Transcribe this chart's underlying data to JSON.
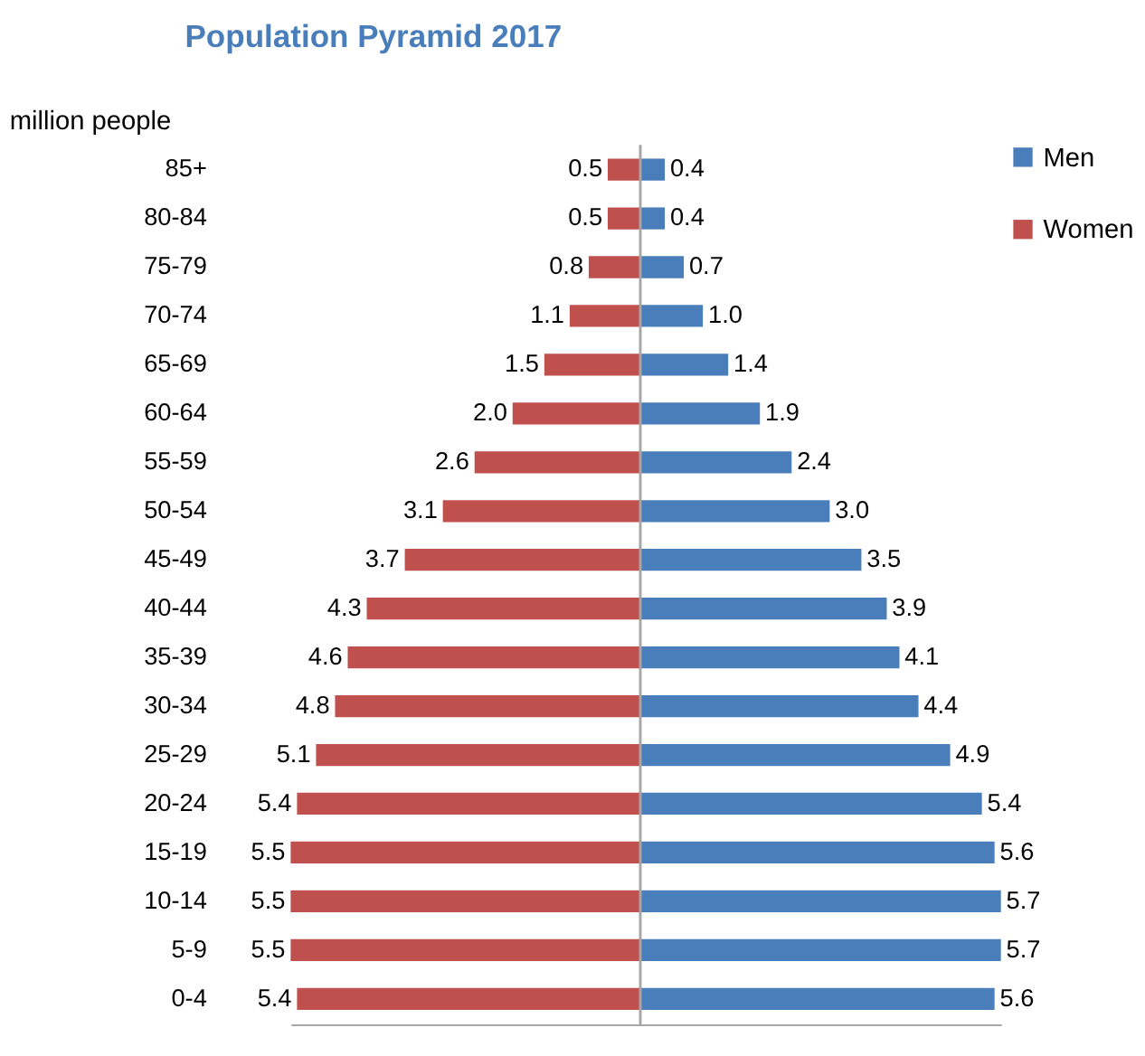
{
  "chart_data": [
    {
      "type": "bar",
      "orientation": "horizontal",
      "title": "Population Pyramid 2017",
      "ylabel": "million people",
      "categories": [
        "85+",
        "80-84",
        "75-79",
        "70-74",
        "65-69",
        "60-64",
        "55-59",
        "50-54",
        "45-49",
        "40-44",
        "35-39",
        "30-34",
        "25-29",
        "20-24",
        "15-19",
        "10-14",
        "5-9",
        "0-4"
      ],
      "series": [
        {
          "name": "Women",
          "color": "#c0504d",
          "values": [
            0.5,
            0.5,
            0.8,
            1.1,
            1.5,
            2.0,
            2.6,
            3.1,
            3.7,
            4.3,
            4.6,
            4.8,
            5.1,
            5.4,
            5.5,
            5.5,
            5.5,
            5.4
          ],
          "value_labels": [
            "0.5",
            "0.5",
            "0.8",
            "1.1",
            "1.5",
            "2.0",
            "2.6",
            "3.1",
            "3.7",
            "4.3",
            "4.6",
            "4.8",
            "5.1",
            "5.4",
            "5.5",
            "5.5",
            "5.5",
            "5.4"
          ]
        }
      ],
      "xlim": [
        5.5,
        0
      ],
      "tick_labels": "y",
      "grid": false,
      "legend": "top right"
    },
    {
      "type": "bar",
      "orientation": "horizontal",
      "categories": [
        "85+",
        "80-84",
        "75-79",
        "70-74",
        "65-69",
        "60-64",
        "55-59",
        "50-54",
        "45-49",
        "40-44",
        "35-39",
        "30-34",
        "25-29",
        "20-24",
        "15-19",
        "10-14",
        "5-9",
        "0-4"
      ],
      "series": [
        {
          "name": "Men",
          "color": "#4a7ebb",
          "values": [
            0.4,
            0.4,
            0.7,
            1.0,
            1.4,
            1.9,
            2.4,
            3.0,
            3.5,
            3.9,
            4.1,
            4.4,
            4.9,
            5.4,
            5.6,
            5.7,
            5.7,
            5.6
          ],
          "value_labels": [
            "0.4",
            "0.4",
            "0.7",
            "1.0",
            "1.4",
            "1.9",
            "2.4",
            "3.0",
            "3.5",
            "3.9",
            "4.1",
            "4.4",
            "4.9",
            "5.4",
            "5.6",
            "5.7",
            "5.7",
            "5.6"
          ]
        }
      ],
      "xlim": [
        0,
        5.7
      ],
      "tick_labels": false,
      "grid": false,
      "legend": "top right"
    }
  ]
}
